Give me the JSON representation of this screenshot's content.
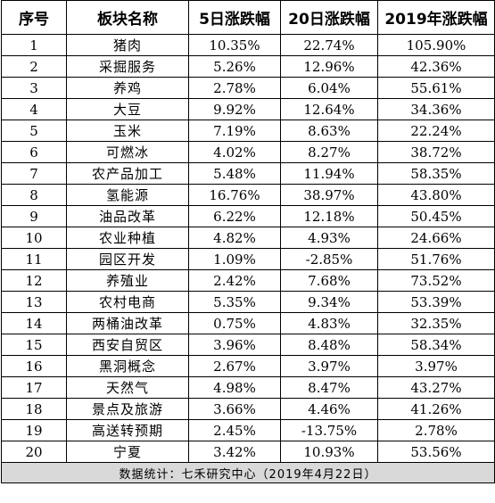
{
  "header": {
    "col_index": "序号",
    "col_sector": "板块名称",
    "col_5d": "5日涨跌幅",
    "col_20d": "20日涨跌幅",
    "col_2019": "2019年涨跌幅"
  },
  "rows": [
    {
      "idx": "1",
      "name": "猪肉",
      "d5": "10.35%",
      "d20": "22.74%",
      "y2019": "105.90%"
    },
    {
      "idx": "2",
      "name": "采掘服务",
      "d5": "5.26%",
      "d20": "12.96%",
      "y2019": "42.36%"
    },
    {
      "idx": "3",
      "name": "养鸡",
      "d5": "2.78%",
      "d20": "6.04%",
      "y2019": "55.61%"
    },
    {
      "idx": "4",
      "name": "大豆",
      "d5": "9.92%",
      "d20": "12.64%",
      "y2019": "34.36%"
    },
    {
      "idx": "5",
      "name": "玉米",
      "d5": "7.19%",
      "d20": "8.63%",
      "y2019": "22.24%"
    },
    {
      "idx": "6",
      "name": "可燃冰",
      "d5": "4.02%",
      "d20": "8.27%",
      "y2019": "38.72%"
    },
    {
      "idx": "7",
      "name": "农产品加工",
      "d5": "5.48%",
      "d20": "11.94%",
      "y2019": "58.35%"
    },
    {
      "idx": "8",
      "name": "氢能源",
      "d5": "16.76%",
      "d20": "38.97%",
      "y2019": "43.80%"
    },
    {
      "idx": "9",
      "name": "油品改革",
      "d5": "6.22%",
      "d20": "12.18%",
      "y2019": "50.45%"
    },
    {
      "idx": "10",
      "name": "农业种植",
      "d5": "4.82%",
      "d20": "4.93%",
      "y2019": "24.66%"
    },
    {
      "idx": "11",
      "name": "园区开发",
      "d5": "1.09%",
      "d20": "-2.85%",
      "y2019": "51.76%"
    },
    {
      "idx": "12",
      "name": "养殖业",
      "d5": "2.42%",
      "d20": "7.68%",
      "y2019": "73.52%"
    },
    {
      "idx": "13",
      "name": "农村电商",
      "d5": "5.35%",
      "d20": "9.34%",
      "y2019": "53.39%"
    },
    {
      "idx": "14",
      "name": "两桶油改革",
      "d5": "0.75%",
      "d20": "4.83%",
      "y2019": "32.35%"
    },
    {
      "idx": "15",
      "name": "西安自贸区",
      "d5": "3.96%",
      "d20": "8.48%",
      "y2019": "58.34%"
    },
    {
      "idx": "16",
      "name": "黑洞概念",
      "d5": "2.67%",
      "d20": "3.97%",
      "y2019": "3.97%"
    },
    {
      "idx": "17",
      "name": "天然气",
      "d5": "4.98%",
      "d20": "8.47%",
      "y2019": "43.27%"
    },
    {
      "idx": "18",
      "name": "景点及旅游",
      "d5": "3.66%",
      "d20": "4.46%",
      "y2019": "41.26%"
    },
    {
      "idx": "19",
      "name": "高送转预期",
      "d5": "2.45%",
      "d20": "-13.75%",
      "y2019": "2.78%"
    },
    {
      "idx": "20",
      "name": "宁夏",
      "d5": "3.42%",
      "d20": "10.93%",
      "y2019": "53.56%"
    }
  ],
  "footer": {
    "source": "数据统计：七禾研究中心（2019年4月22日）"
  },
  "colors": {
    "footer_bg": "#d9d9d9",
    "border": "#000000"
  }
}
